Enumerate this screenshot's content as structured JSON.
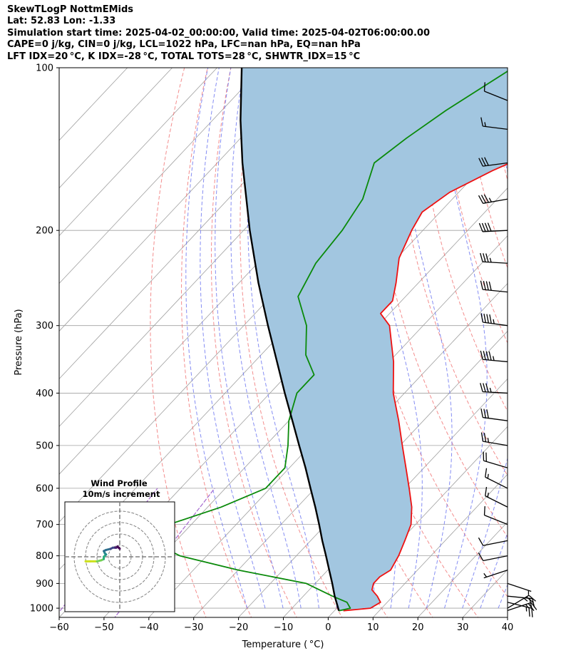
{
  "header": {
    "title": "SkewTLogP NottmEMids",
    "location": "Lat: 52.83   Lon: -1.33",
    "times": "Simulation start time: 2025-04-02_00:00:00, Valid time: 2025-04-02T06:00:00.00",
    "params": "CAPE=0 j/kg, CIN=0 j/kg, LCL=1022 hPa, LFC=nan hPa, EQ=nan hPa",
    "indices": "LFT IDX=20 °C, K IDX=-28 °C, TOTAL TOTS=28 °C, SHWTR_IDX=15 °C"
  },
  "colors": {
    "temperature": "#ee1111",
    "dewpoint": "#0a8a0a",
    "parcel": "#000000",
    "shade": "#a2c6e0",
    "dry_adiabat": "#f07070",
    "moist_adiabat": "#6670f0",
    "mixing_ratio": "#9b59c9",
    "isotherm": "#a0a0a0"
  },
  "chart_data": {
    "type": "line",
    "xlabel": "Temperature ( °C)",
    "ylabel": "Pressure (hPa)",
    "xlim": [
      -60,
      40
    ],
    "ylim": [
      1040,
      100
    ],
    "y_scale": "log",
    "xticks": [
      "−60",
      "−50",
      "−40",
      "−30",
      "−20",
      "−10",
      "0",
      "10",
      "20",
      "30",
      "40"
    ],
    "yticks": [
      "100",
      "200",
      "300",
      "400",
      "500",
      "600",
      "700",
      "800",
      "900",
      "1000"
    ],
    "grid": true,
    "series": [
      {
        "name": "",
        "role": "temperature",
        "pressure": [
          1011,
          1000,
          975,
          950,
          925,
          900,
          875,
          850,
          800,
          750,
          700,
          650,
          600,
          550,
          500,
          450,
          400,
          350,
          300,
          285,
          270,
          250,
          225,
          200,
          185,
          170,
          155,
          140,
          125,
          115,
          100
        ],
        "temp": [
          2.0,
          7.5,
          8.5,
          6.5,
          4.0,
          3.0,
          3.0,
          4.0,
          2.8,
          1.0,
          -1.0,
          -4.5,
          -9.0,
          -14.0,
          -19.5,
          -25.5,
          -32.5,
          -39.0,
          -47.5,
          -52.0,
          -52.0,
          -55.0,
          -59.5,
          -62.5,
          -64.0,
          -62.0,
          -57.0,
          -50.0,
          -46.0,
          -42.5,
          -39.0
        ]
      },
      {
        "name": "",
        "role": "dewpoint",
        "pressure": [
          1011,
          1000,
          975,
          950,
          900,
          850,
          800,
          750,
          725,
          700,
          650,
          600,
          550,
          500,
          450,
          400,
          370,
          340,
          300,
          265,
          230,
          200,
          175,
          150,
          135,
          120,
          100
        ],
        "temp": [
          1.0,
          3.0,
          1.0,
          -3.5,
          -12.0,
          -30.0,
          -46.0,
          -56.0,
          -62.0,
          -55.0,
          -47.0,
          -41.0,
          -41.0,
          -45.0,
          -50.0,
          -54.0,
          -54.0,
          -60.0,
          -66.0,
          -74.0,
          -77.0,
          -78.0,
          -80.0,
          -85.0,
          -83.0,
          -80.0,
          -74.0
        ]
      },
      {
        "name": "",
        "role": "parcel",
        "pressure": [
          1011,
          1000,
          950,
          900,
          850,
          800,
          750,
          700,
          650,
          600,
          550,
          500,
          450,
          400,
          350,
          300,
          250,
          200,
          150,
          125,
          100
        ],
        "temp": [
          1.0,
          0.3,
          -3.0,
          -6.2,
          -9.7,
          -13.4,
          -17.4,
          -21.5,
          -26.0,
          -31.0,
          -36.4,
          -42.5,
          -49.2,
          -56.7,
          -65.0,
          -74.6,
          -85.7,
          -98.6,
          -114.4,
          -123.8,
          -134.5
        ]
      }
    ],
    "wind_barbs": {
      "pressure": [
        1010,
        1000,
        975,
        950,
        900,
        850,
        800,
        750,
        700,
        650,
        600,
        550,
        500,
        450,
        400,
        350,
        300,
        260,
        230,
        200,
        175,
        150,
        130,
        115
      ],
      "u": [
        -12,
        -10,
        -12,
        -10,
        -3,
        3,
        5,
        5,
        5,
        6,
        8,
        10,
        12,
        15,
        18,
        22,
        22,
        20,
        18,
        20,
        17,
        15,
        8,
        5
      ],
      "v": [
        -4,
        -6,
        3,
        1,
        1,
        1,
        1,
        1,
        -2,
        -3,
        -4,
        -3,
        -2,
        -2,
        -1,
        -2,
        -3,
        -2,
        -1,
        1,
        3,
        2,
        -1,
        -2
      ]
    },
    "inset": {
      "title": "Wind Profile",
      "subtitle": "10m/s increment",
      "rings_ms": [
        10,
        20,
        30,
        40
      ],
      "hodograph_u": [
        -30,
        -26,
        -20,
        -16,
        -14,
        -14,
        -12,
        -13,
        -14,
        -12,
        -8,
        -6,
        -4,
        -3,
        -2,
        0
      ],
      "hodograph_v": [
        -4,
        -4,
        -4,
        -3,
        -2,
        0,
        2,
        3,
        5,
        6,
        7,
        8,
        8,
        8,
        9,
        7
      ]
    }
  }
}
